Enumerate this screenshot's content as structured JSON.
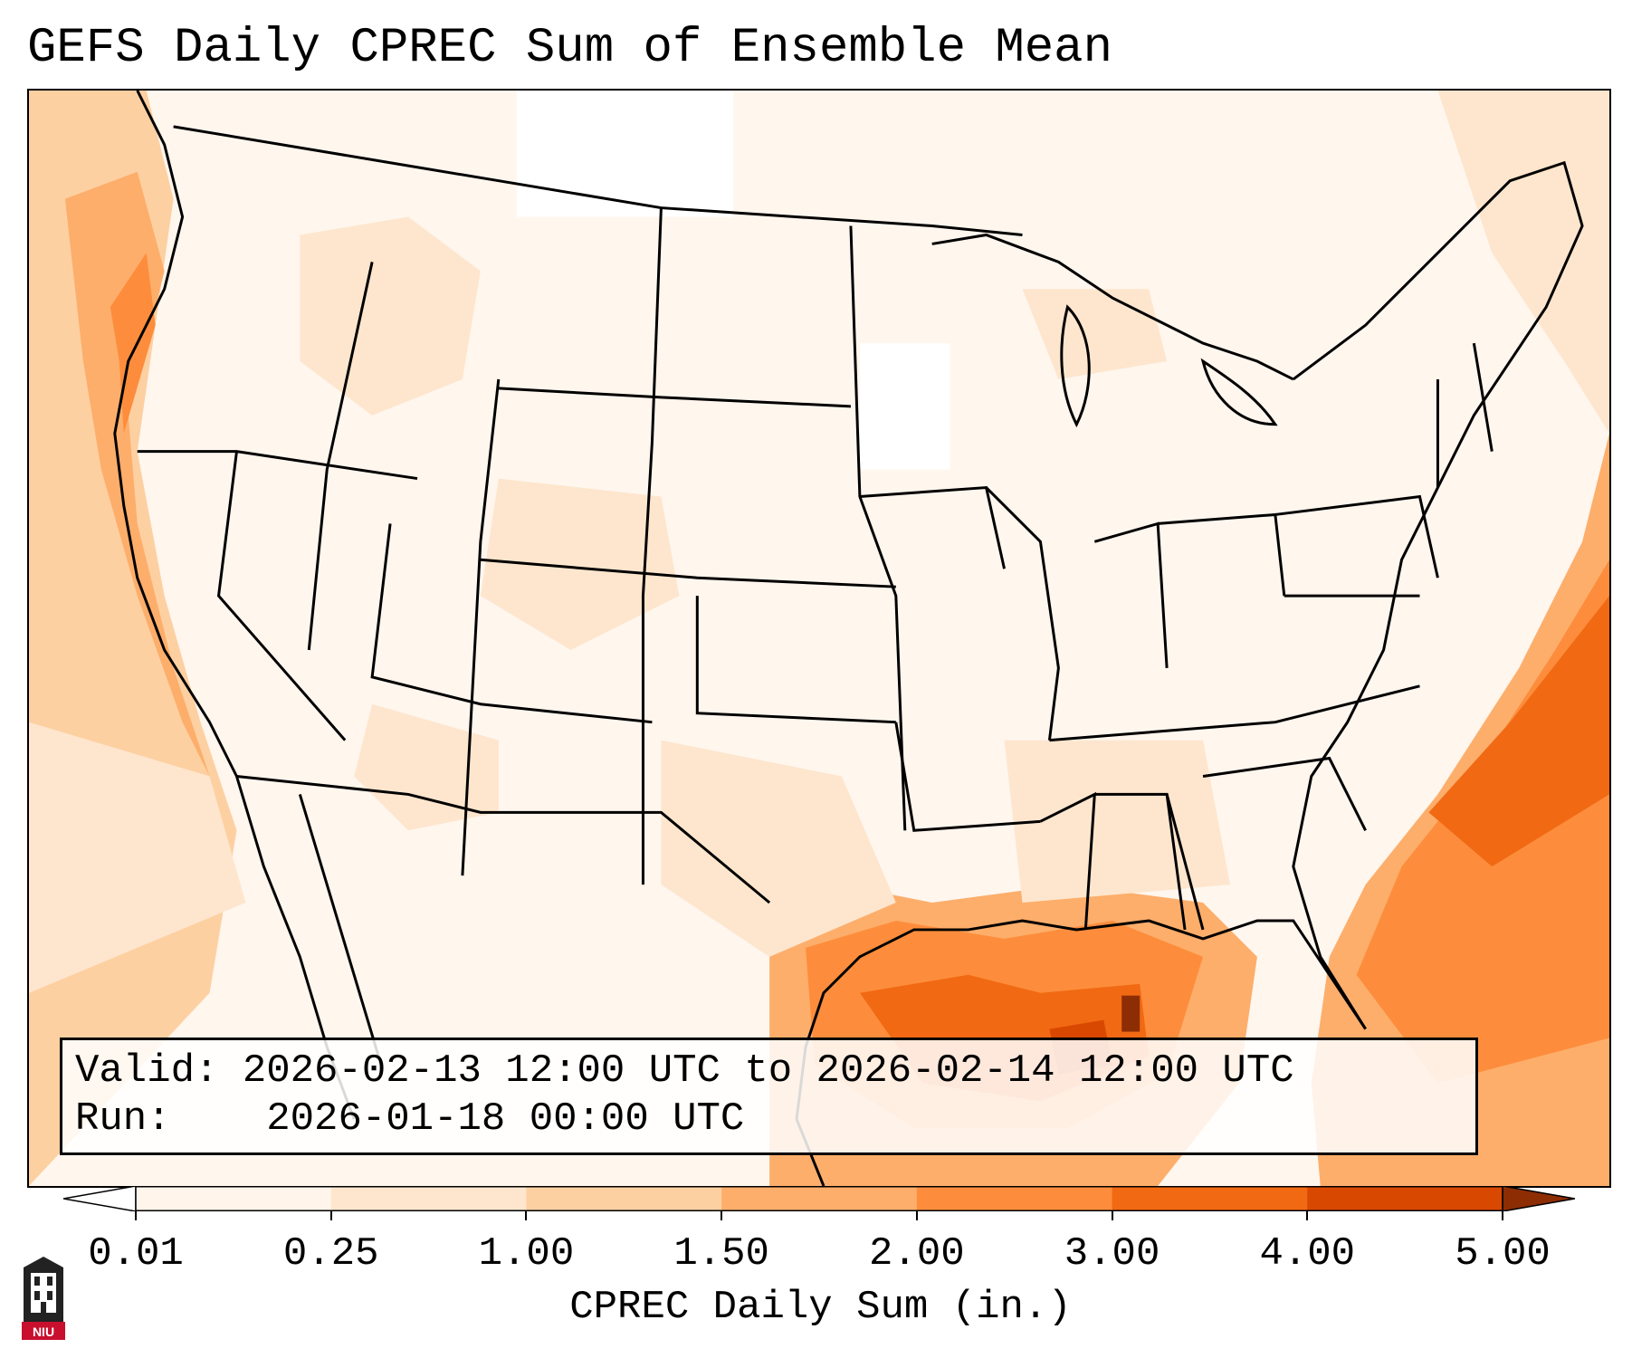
{
  "title": "GEFS Daily CPREC Sum of Ensemble Mean",
  "info": {
    "valid_label": "Valid:",
    "valid_value": "2026-02-13 12:00 UTC to 2026-02-14 12:00 UTC",
    "run_label": "Run:",
    "run_value": "2026-01-18 00:00 UTC"
  },
  "colorbar": {
    "label": "CPREC Daily Sum (in.)",
    "ticks": [
      "0.01",
      "0.25",
      "1.00",
      "1.50",
      "2.00",
      "3.00",
      "4.00",
      "5.00"
    ],
    "colors": [
      "#fff5eb",
      "#fee6ce",
      "#fdd0a2",
      "#fdae6b",
      "#fd8d3c",
      "#f16913",
      "#d94801",
      "#8c2d04"
    ]
  },
  "logo": {
    "text": "NIU",
    "color": "#c8102e"
  }
}
